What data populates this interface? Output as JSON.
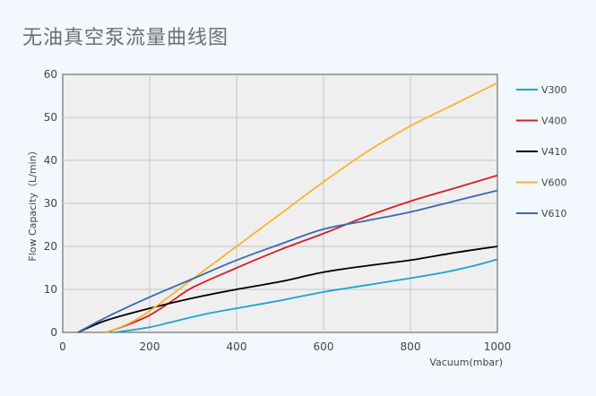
{
  "page": {
    "title": "无油真空泵流量曲线图"
  },
  "chart_data": {
    "type": "line",
    "title": "无油真空泵流量曲线图",
    "xlabel": "Vacuum(mbar)",
    "ylabel": "Flow Capacity（L/min）",
    "xlim": [
      0,
      1000
    ],
    "ylim": [
      0,
      60
    ],
    "xticks": [
      0,
      200,
      400,
      600,
      800,
      1000
    ],
    "yticks": [
      0,
      10,
      20,
      30,
      40,
      50,
      60
    ],
    "grid": true,
    "legend_position": "right",
    "series": [
      {
        "name": "V300",
        "color": "#1ea3cf",
        "points": [
          [
            120,
            0
          ],
          [
            200,
            1.2
          ],
          [
            250,
            2.4
          ],
          [
            330,
            4.3
          ],
          [
            400,
            5.6
          ],
          [
            500,
            7.4
          ],
          [
            600,
            9.4
          ],
          [
            700,
            11
          ],
          [
            800,
            12.6
          ],
          [
            880,
            14
          ],
          [
            950,
            15.6
          ],
          [
            1000,
            17
          ]
        ]
      },
      {
        "name": "V400",
        "color": "#d81e25",
        "points": [
          [
            100,
            0
          ],
          [
            150,
            1.8
          ],
          [
            200,
            4
          ],
          [
            250,
            7.2
          ],
          [
            300,
            10.5
          ],
          [
            400,
            15
          ],
          [
            500,
            19.2
          ],
          [
            600,
            23
          ],
          [
            700,
            27
          ],
          [
            800,
            30.5
          ],
          [
            900,
            33.5
          ],
          [
            1000,
            36.5
          ]
        ]
      },
      {
        "name": "V410",
        "color": "#000000",
        "points": [
          [
            35,
            0
          ],
          [
            100,
            2.8
          ],
          [
            200,
            5.6
          ],
          [
            300,
            8
          ],
          [
            400,
            10
          ],
          [
            500,
            11.8
          ],
          [
            600,
            14
          ],
          [
            700,
            15.5
          ],
          [
            800,
            16.8
          ],
          [
            900,
            18.5
          ],
          [
            1000,
            20
          ]
        ]
      },
      {
        "name": "V600",
        "color": "#f7b52c",
        "points": [
          [
            100,
            0
          ],
          [
            150,
            2
          ],
          [
            200,
            5
          ],
          [
            300,
            12.5
          ],
          [
            400,
            20
          ],
          [
            500,
            27.5
          ],
          [
            600,
            35
          ],
          [
            700,
            42
          ],
          [
            800,
            48
          ],
          [
            900,
            53
          ],
          [
            1000,
            58
          ]
        ]
      },
      {
        "name": "V610",
        "color": "#3a69ad",
        "points": [
          [
            35,
            0
          ],
          [
            100,
            3.5
          ],
          [
            200,
            8.2
          ],
          [
            300,
            12.5
          ],
          [
            400,
            16.8
          ],
          [
            500,
            20.5
          ],
          [
            600,
            24
          ],
          [
            700,
            26
          ],
          [
            800,
            28
          ],
          [
            900,
            30.5
          ],
          [
            1000,
            33
          ]
        ]
      }
    ]
  }
}
